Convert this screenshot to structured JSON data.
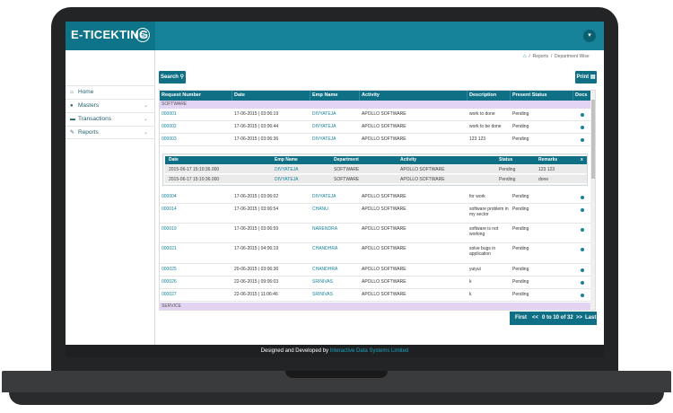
{
  "app": {
    "brand": "E-TICEKTING",
    "menu_icon": "hamburger-icon",
    "user_icon": "chevron-down-icon"
  },
  "sidebar": {
    "items": [
      {
        "label": "Home",
        "icon": "home-icon"
      },
      {
        "label": "Masters",
        "icon": "user-icon"
      },
      {
        "label": "Transactions",
        "icon": "card-icon"
      },
      {
        "label": "Reports",
        "icon": "edit-icon"
      }
    ]
  },
  "breadcrumb": {
    "items": [
      "Reports",
      "Department Wise"
    ],
    "separator": "/"
  },
  "toolbar": {
    "search_label": "Search",
    "print_label": "Print"
  },
  "table": {
    "columns": [
      "Request Number",
      "Date",
      "Emp Name",
      "Activity",
      "Description",
      "Present Status",
      "Docs"
    ],
    "groups": [
      {
        "name": "SOFTWARE",
        "rows": [
          {
            "req": "000001",
            "date": "17-06-2015 | 03:06:19",
            "emp": "DIVYATEJA",
            "activity": "APOLLO SOFTWARE",
            "desc": "work to done",
            "status": "Pending"
          },
          {
            "req": "000002",
            "date": "17-06-2015 | 03:06:44",
            "emp": "DIVYATEJA",
            "activity": "APOLLO SOFTWARE",
            "desc": "work to be done",
            "status": "Pending"
          },
          {
            "req": "000003",
            "date": "17-06-2015 | 03:06:36",
            "emp": "DIVYATEJA",
            "activity": "APOLLO SOFTWARE",
            "desc": "123 123",
            "status": "Pending"
          }
        ],
        "detail": {
          "columns": [
            "Date",
            "Emp Name",
            "Department",
            "Activity",
            "Status",
            "Remarks"
          ],
          "close": "x",
          "rows": [
            [
              "2015-06-17 15:10:36.000",
              "DIVYATEJA",
              "SOFTWARE",
              "APOLLO SOFTWARE",
              "Pending",
              "123 123"
            ],
            [
              "2015-06-17 15:10:36.000",
              "DIVYATEJA",
              "SOFTWARE",
              "APOLLO SOFTWARE",
              "Pending",
              "done"
            ]
          ]
        },
        "rows_after": [
          {
            "req": "000004",
            "date": "17-06-2015 | 03:06:02",
            "emp": "DIVYATEJA",
            "activity": "APOLLO SOFTWARE",
            "desc": "for work",
            "status": "Pending"
          },
          {
            "req": "000014",
            "date": "17-06-2015 | 03:06:54",
            "emp": "CHANU",
            "activity": "APOLLO SOFTWARE",
            "desc": "software problem in my sector",
            "status": "Pending"
          },
          {
            "req": "000019",
            "date": "17-06-2015 | 03:06:59",
            "emp": "NARENDRA",
            "activity": "APOLLO SOFTWARE",
            "desc": "software is not working",
            "status": "Pending"
          },
          {
            "req": "000021",
            "date": "17-06-2015 | 04:06:19",
            "emp": "CHANDHRA",
            "activity": "APOLLO SOFTWARE",
            "desc": "solve bugs in application",
            "status": "Pending"
          },
          {
            "req": "000025",
            "date": "20-06-2015 | 03:06:36",
            "emp": "CHANDHRA",
            "activity": "APOLLO SOFTWARE",
            "desc": "yuiyui",
            "status": "Pending"
          },
          {
            "req": "000026",
            "date": "22-06-2015 | 09:06:03",
            "emp": "SRINIVAS",
            "activity": "APOLLO SOFTWARE",
            "desc": "k",
            "status": "Pending"
          },
          {
            "req": "000027",
            "date": "22-06-2015 | 11:06:46",
            "emp": "SRINIVAS",
            "activity": "APOLLO SOFTWARE",
            "desc": "k",
            "status": "Pending"
          }
        ]
      },
      {
        "name": "SERVICE",
        "rows": []
      }
    ]
  },
  "pager": {
    "first": "First",
    "prev": "<<",
    "info": "0 to 10 of 32",
    "next": ">>",
    "last": "Last"
  },
  "footer": {
    "prefix": "Designed and Developed by",
    "company": "Interactive Data Systems Limited"
  },
  "colors": {
    "primary": "#17839b",
    "dark": "#0e6f85",
    "group_bg": "#e2d4f2"
  }
}
